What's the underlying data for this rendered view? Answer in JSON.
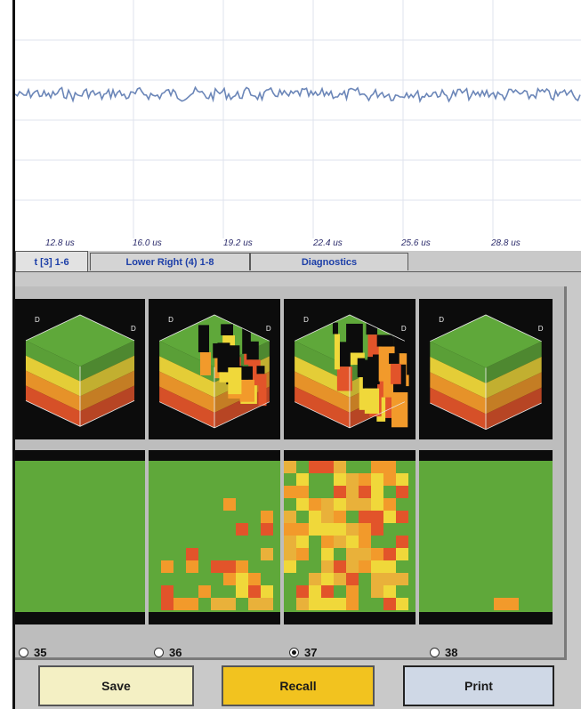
{
  "plot": {
    "x_ticks": [
      "12.8 us",
      "16.0 us",
      "19.2 us",
      "22.4 us",
      "25.6 us",
      "28.8 us"
    ]
  },
  "tabs": [
    {
      "label": "t [3] 1-6",
      "active": true
    },
    {
      "label": "Lower Right (4) 1-8",
      "active": false
    },
    {
      "label": "Diagnostics",
      "active": false
    }
  ],
  "channels": [
    {
      "label": "35",
      "checked": false
    },
    {
      "label": "36",
      "checked": false
    },
    {
      "label": "37",
      "checked": true
    },
    {
      "label": "38",
      "checked": false
    }
  ],
  "cube_axis_label": "D",
  "buttons": {
    "save": "Save",
    "recall": "Recall",
    "print": "Print"
  },
  "colors": {
    "green": "#5fa83a",
    "yellow": "#f0d83a",
    "orange": "#f29a2b",
    "red": "#e2542a",
    "waveform": "#6b86b8"
  }
}
